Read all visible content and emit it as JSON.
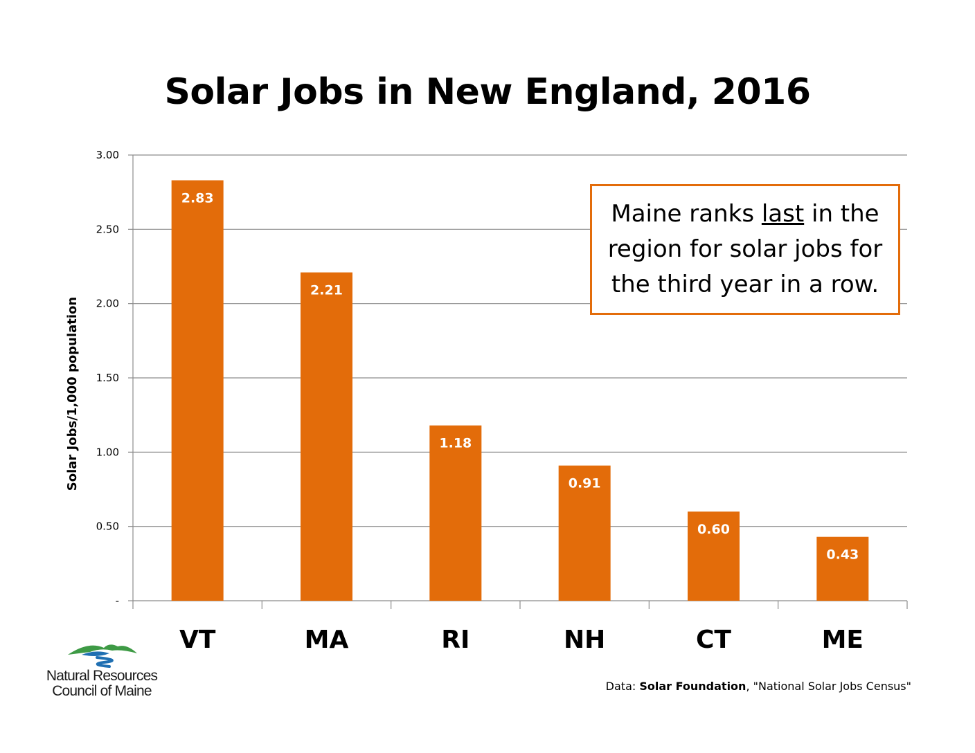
{
  "chart_data": {
    "type": "bar",
    "title": "Solar Jobs in New England, 2016",
    "ylabel": "Solar Jobs/1,000 population",
    "xlabel": "",
    "categories": [
      "VT",
      "MA",
      "RI",
      "NH",
      "CT",
      "ME"
    ],
    "values": [
      2.83,
      2.21,
      1.18,
      0.91,
      0.6,
      0.43
    ],
    "value_labels": [
      "2.83",
      "2.21",
      "1.18",
      "0.91",
      "0.60",
      "0.43"
    ],
    "ylim": [
      0,
      3
    ],
    "yticks": [
      0,
      0.5,
      1,
      1.5,
      2,
      2.5,
      3
    ],
    "ytick_labels": [
      "-",
      "0.50",
      "1.00",
      "1.50",
      "2.00",
      "2.50",
      "3.00"
    ],
    "grid": true,
    "bar_color": "#E36C0A",
    "legend": "none"
  },
  "callout": {
    "text_before": "Maine ranks ",
    "text_emphasis": "last",
    "text_after": " in the region for solar jobs for the third year in a row.",
    "border_color": "#E36C0A"
  },
  "logo": {
    "line1": "Natural Resources",
    "line2": "Council of Maine",
    "icon": "mountains-river-logo",
    "colors": [
      "#2E8B3C",
      "#1F6FB2"
    ]
  },
  "source": {
    "prefix": "Data: ",
    "org": "Solar Foundation",
    "rest": ", \"National Solar Jobs Census\""
  }
}
